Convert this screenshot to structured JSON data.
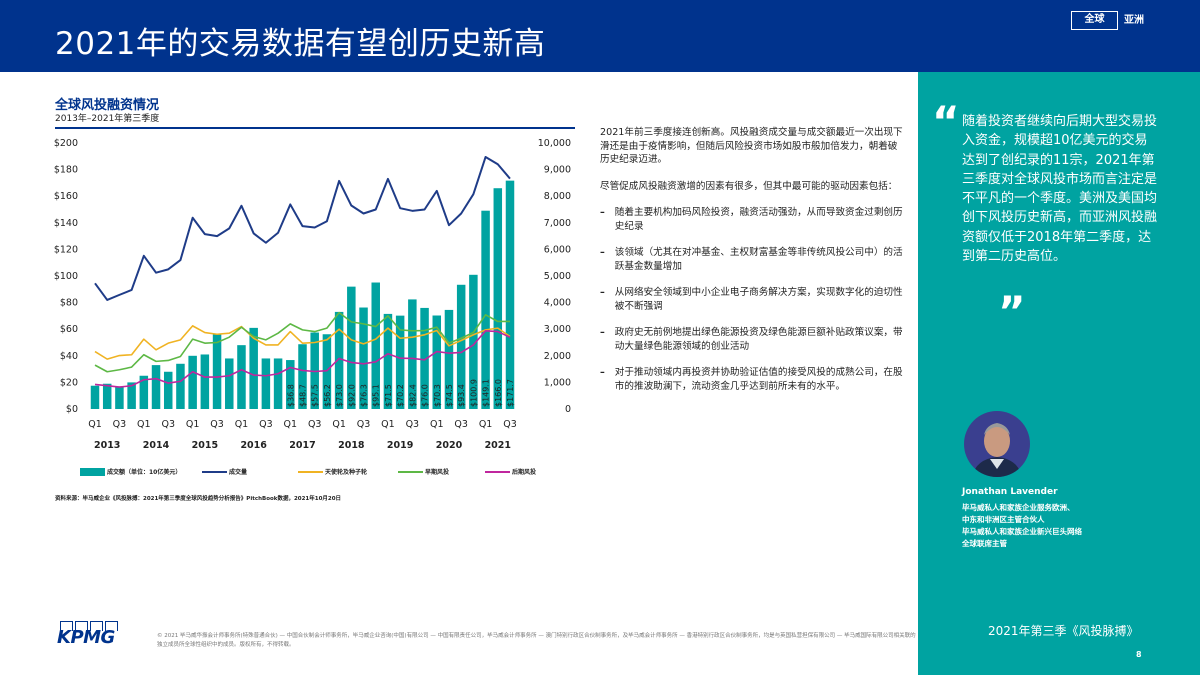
{
  "header": {
    "title": "2021年的交易数据有望创历史新高",
    "region_global": "全球",
    "region_asia": "亚洲"
  },
  "colors": {
    "brand_blue": "#00338D",
    "teal": "#00A3A1",
    "bars": "#00A3A1",
    "deal_count": "#1F3C88",
    "angel_seed": "#F0B323",
    "early": "#5DB845",
    "late": "#C0269E"
  },
  "chart_data": {
    "type": "bar+line",
    "title": "全球风投融资情况",
    "subtitle": "2013年–2021年第三季度",
    "x_tick_labels": [
      "Q1",
      "Q3",
      "Q1",
      "Q3",
      "Q1",
      "Q3",
      "Q1",
      "Q3",
      "Q1",
      "Q3",
      "Q1",
      "Q3",
      "Q1",
      "Q3",
      "Q1",
      "Q3",
      "Q1",
      "Q3"
    ],
    "year_labels": [
      "2013",
      "2014",
      "2015",
      "2016",
      "2017",
      "2018",
      "2019",
      "2020",
      "2021"
    ],
    "categories": [
      "2013Q1",
      "2013Q2",
      "2013Q3",
      "2013Q4",
      "2014Q1",
      "2014Q2",
      "2014Q3",
      "2014Q4",
      "2015Q1",
      "2015Q2",
      "2015Q3",
      "2015Q4",
      "2016Q1",
      "2016Q2",
      "2016Q3",
      "2016Q4",
      "2017Q1",
      "2017Q2",
      "2017Q3",
      "2017Q4",
      "2018Q1",
      "2018Q2",
      "2018Q3",
      "2018Q4",
      "2019Q1",
      "2019Q2",
      "2019Q3",
      "2019Q4",
      "2020Q1",
      "2020Q2",
      "2020Q3",
      "2020Q4",
      "2021Q1",
      "2021Q2",
      "2021Q3"
    ],
    "left_axis": {
      "ylim": [
        0,
        200
      ],
      "ticks": [
        "$0",
        "$20",
        "$40",
        "$60",
        "$80",
        "$100",
        "$120",
        "$140",
        "$160",
        "$180",
        "$200"
      ]
    },
    "right_axis": {
      "ylim": [
        0,
        10000
      ],
      "ticks": [
        "0",
        "1,000",
        "2,000",
        "3,000",
        "4,000",
        "5,000",
        "6,000",
        "7,000",
        "8,000",
        "9,000",
        "10,000"
      ]
    },
    "bar_labels": [
      "",
      "",
      "",
      "",
      "",
      "",
      "",
      "",
      "",
      "",
      "",
      "",
      "",
      "",
      "",
      "",
      "$36.8",
      "$48.7",
      "$57.5",
      "$56.2",
      "$73.0",
      "$92.0",
      "$76.3",
      "$95.1",
      "$71.5",
      "$70.2",
      "$82.4",
      "$76.0",
      "$70.3",
      "$74.5",
      "$93.4",
      "$100.9",
      "$149.1",
      "$166.0",
      "$171.7"
    ],
    "series": [
      {
        "name": "成交额（单位：10亿美元）",
        "type": "bar",
        "axis": "left",
        "values": [
          17.5,
          19,
          17,
          20,
          25,
          33,
          28,
          34,
          40,
          41,
          56,
          38,
          48,
          61,
          38,
          38,
          36.8,
          48.7,
          57.5,
          56.2,
          73.0,
          92.0,
          76.3,
          95.1,
          71.5,
          70.2,
          82.4,
          76.0,
          70.3,
          74.5,
          93.4,
          100.9,
          149.1,
          166.0,
          171.7
        ]
      },
      {
        "name": "成交量",
        "type": "line",
        "axis": "right",
        "values": [
          4725,
          4100,
          4290,
          4475,
          5760,
          5125,
          5250,
          5600,
          7190,
          6575,
          6500,
          6790,
          7640,
          6600,
          6250,
          6625,
          7690,
          6875,
          6825,
          7060,
          8575,
          7650,
          7350,
          7500,
          8650,
          7550,
          7450,
          7500,
          8200,
          6910,
          7350,
          8075,
          9475,
          9200,
          8660
        ]
      },
      {
        "name": "天使轮及种子轮",
        "type": "line",
        "axis": "right",
        "values": [
          2160,
          1875,
          2010,
          2040,
          2625,
          2225,
          2475,
          2600,
          3125,
          2875,
          2810,
          2850,
          3100,
          2660,
          2410,
          2410,
          2910,
          2475,
          2500,
          2600,
          3000,
          2600,
          2450,
          2625,
          3040,
          2660,
          2700,
          2790,
          2950,
          2375,
          2575,
          2790,
          2975,
          3040,
          2725
        ]
      },
      {
        "name": "早期风投",
        "type": "line",
        "axis": "right",
        "values": [
          1650,
          1400,
          1475,
          1575,
          2040,
          1790,
          1825,
          1975,
          2625,
          2475,
          2500,
          2700,
          3075,
          2725,
          2600,
          2850,
          3200,
          2975,
          2910,
          3040,
          3625,
          3275,
          3200,
          3100,
          3500,
          2975,
          2940,
          2950,
          3075,
          2475,
          2660,
          2875,
          3540,
          3290,
          3290
        ]
      },
      {
        "name": "后期风投",
        "type": "line",
        "axis": "right",
        "values": [
          925,
          875,
          825,
          875,
          1100,
          1140,
          975,
          1040,
          1400,
          1200,
          1200,
          1250,
          1475,
          1275,
          1250,
          1325,
          1560,
          1450,
          1410,
          1440,
          1900,
          1750,
          1700,
          1775,
          2075,
          1910,
          1900,
          1850,
          2160,
          2100,
          2125,
          2410,
          2940,
          2910,
          2700
        ]
      }
    ],
    "legend_position": "bottom",
    "grid": false
  },
  "source": "资料来源：毕马威企业《风投脉搏：2021年第三季度全球风投趋势分析报告》PitchBook数据，2021年10月20日",
  "body": {
    "intro": "2021年前三季度接连创新高。风投融资成交量与成交额最近一次出现下滑还是由于疫情影响，但随后风险投资市场如股市般加倍发力，朝着破历史纪录迈进。",
    "lead": "尽管促成风投融资激增的因素有很多，但其中最可能的驱动因素包括：",
    "bullets": [
      "随着主要机构加码风险投资，融资活动强劲，从而导致资金过剩创历史纪录",
      "该领域（尤其在对冲基金、主权财富基金等非传统风投公司中）的活跃基金数量增加",
      "从网络安全领域到中小企业电子商务解决方案，实现数字化的迫切性被不断强调",
      "政府史无前例地提出绿色能源投资及绿色能源巨额补贴政策议案，带动大量绿色能源领域的创业活动",
      "对于推动领域内再投资并协助验证估值的接受风投的成熟公司，在股市的推波助澜下，流动资金几乎达到前所未有的水平。"
    ],
    "bullet_mark": "–"
  },
  "panel": {
    "quote_open": "“",
    "quote": "随着投资者继续向后期大型交易投入资金，规模超10亿美元的交易达到了创纪录的11宗，2021年第三季度对全球风投市场而言注定是不平凡的一个季度。美洲及美国均创下风投历史新高，而亚洲风投融资额仅低于2018年第二季度，达到第二历史高位。",
    "quote_close": "”",
    "name": "Jonathan Lavender",
    "roles": [
      "毕马威私人和家族企业服务欧洲、",
      "中东和非洲区主管合伙人",
      "毕马威私人和家族企业新兴巨头网络",
      "全球联席主管"
    ],
    "report_name": "2021年第三季《风投脉搏》",
    "page": "8"
  },
  "footer": {
    "logo": "KPMG",
    "copyright": "© 2021 毕马威华振会计师事务所(特殊普通合伙) — 中国合伙制会计师事务所，毕马威企业咨询(中国)有限公司 — 中国有限责任公司，毕马威会计师事务所 — 澳门特别行政区合伙制事务所，及毕马威会计师事务所 — 香港特别行政区合伙制事务所，均是与英国私营担保有限公司 — 毕马威国际有限公司相关联的独立成员所全球性组织中的成员。版权所有，不得转载。"
  }
}
